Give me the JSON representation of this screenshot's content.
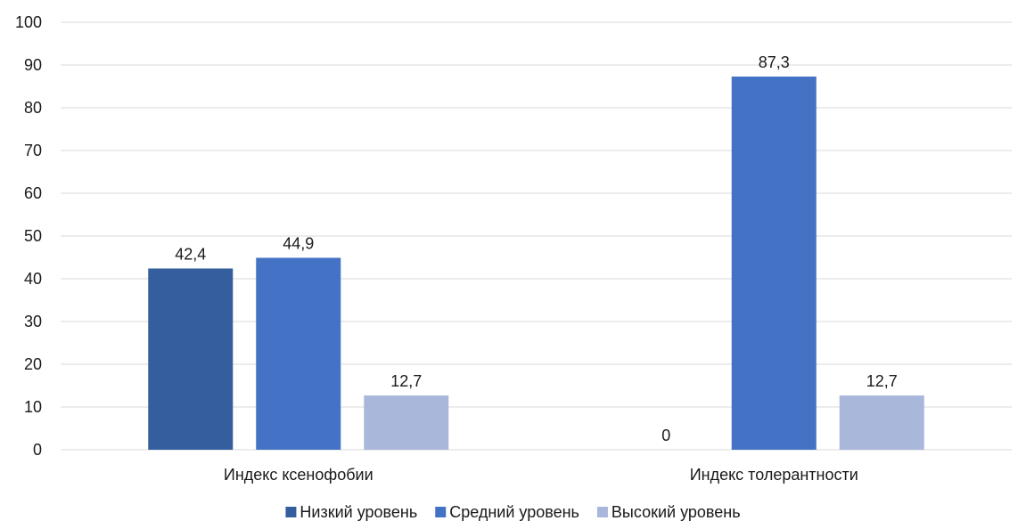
{
  "chart_data": {
    "type": "bar",
    "categories": [
      "Индекс ксенофобии",
      "Индекс толерантности"
    ],
    "series": [
      {
        "name": "Низкий уровень",
        "values": [
          42.4,
          0
        ],
        "labels": [
          "42,4",
          "0"
        ],
        "color": "#355E9E"
      },
      {
        "name": "Средний уровень",
        "values": [
          44.9,
          87.3
        ],
        "labels": [
          "44,9",
          "87,3"
        ],
        "color": "#4472C4"
      },
      {
        "name": "Высокий уровень",
        "values": [
          12.7,
          12.7
        ],
        "labels": [
          "12,7",
          "12,7"
        ],
        "color": "#A9B7DB"
      }
    ],
    "ylim": [
      0,
      100
    ],
    "yticks": [
      0,
      10,
      20,
      30,
      40,
      50,
      60,
      70,
      80,
      90,
      100
    ],
    "grid": true,
    "legend_position": "bottom"
  }
}
